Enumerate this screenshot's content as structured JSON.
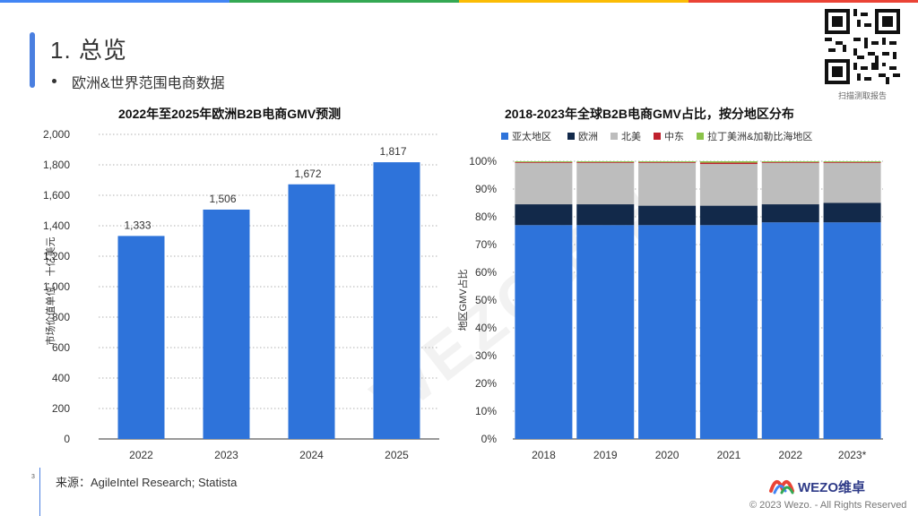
{
  "header": {
    "title": "1. 总览",
    "bullet": "欧洲&世界范围电商数据",
    "qr_caption": "扫描测取报告"
  },
  "watermark": "WEZO维卓",
  "colors": {
    "accent": "#4a7fe0",
    "bar_blue": "#2e73da",
    "apac": "#2e73da",
    "europe": "#12294a",
    "north_america": "#bdbdbd",
    "middle_east": "#c0212d",
    "latam": "#8bc34a",
    "topbar": [
      "#4285f4",
      "#34a853",
      "#fbbc05",
      "#ea4335"
    ]
  },
  "chart_data": [
    {
      "type": "bar",
      "title": "2022年至2025年欧洲B2B电商GMV预测",
      "ylabel": "市场价值单位：十亿美元",
      "xlabel": "",
      "categories": [
        "2022",
        "2023",
        "2024",
        "2025"
      ],
      "values": [
        1333,
        1506,
        1672,
        1817
      ],
      "value_labels": [
        "1,333",
        "1,506",
        "1,672",
        "1,817"
      ],
      "ylim": [
        0,
        2000
      ],
      "yticks": [
        "0",
        "200",
        "400",
        "600",
        "800",
        "1,000",
        "1,200",
        "1,400",
        "1,600",
        "1,800",
        "2,000"
      ],
      "grid": true
    },
    {
      "type": "bar",
      "stacked": true,
      "title": "2018-2023年全球B2B电商GMV占比，按分地区分布",
      "ylabel": "地区GMV占比",
      "legend_position": "top",
      "categories": [
        "2018",
        "2019",
        "2020",
        "2021",
        "2022",
        "2023*"
      ],
      "series": [
        {
          "name": "亚太地区",
          "values": [
            77,
            77,
            77,
            77,
            78,
            78
          ]
        },
        {
          "name": "欧洲",
          "values": [
            7.5,
            7.5,
            7,
            7,
            6.5,
            7
          ]
        },
        {
          "name": "北美",
          "values": [
            15,
            15,
            15.5,
            15,
            15,
            14.5
          ]
        },
        {
          "name": "中东",
          "values": [
            0.2,
            0.2,
            0.2,
            0.5,
            0.2,
            0.2
          ]
        },
        {
          "name": "拉丁美洲&加勒比海地区",
          "values": [
            0.3,
            0.3,
            0.3,
            0.5,
            0.3,
            0.3
          ]
        }
      ],
      "ylim": [
        0,
        100
      ],
      "yticks": [
        "0%",
        "10%",
        "20%",
        "30%",
        "40%",
        "50%",
        "60%",
        "70%",
        "80%",
        "90%",
        "100%"
      ],
      "grid": true
    }
  ],
  "footer": {
    "page_number": "3",
    "source": "来源：AgileIntel Research; Statista",
    "logo_text": "WEZO维卓",
    "copyright": "© 2023 Wezo. - All Rights Reserved"
  }
}
